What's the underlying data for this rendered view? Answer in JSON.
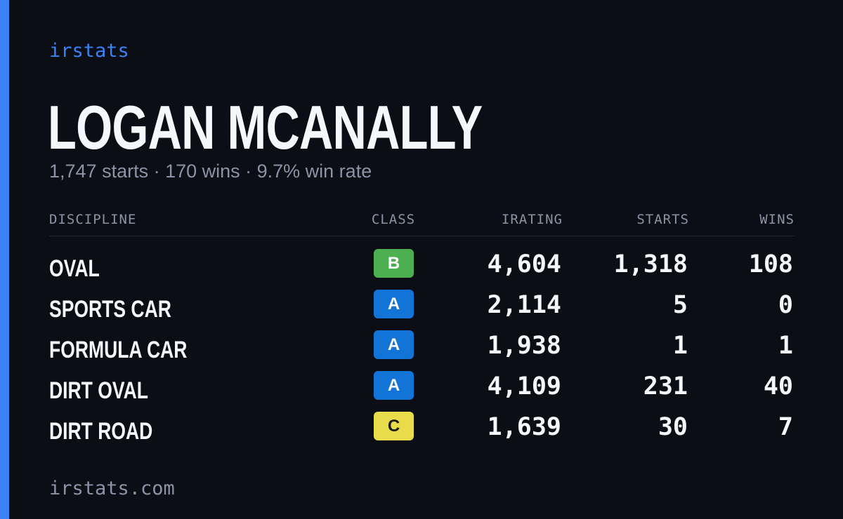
{
  "brand": "irstats",
  "player": {
    "name": "LOGAN MCANALLY",
    "summary": "1,747 starts · 170 wins · 9.7% win rate"
  },
  "table": {
    "headers": {
      "discipline": "DISCIPLINE",
      "class": "CLASS",
      "irating": "IRATING",
      "starts": "STARTS",
      "wins": "WINS"
    },
    "rows": [
      {
        "discipline": "OVAL",
        "class": "B",
        "irating": "4,604",
        "starts": "1,318",
        "wins": "108"
      },
      {
        "discipline": "SPORTS CAR",
        "class": "A",
        "irating": "2,114",
        "starts": "5",
        "wins": "0"
      },
      {
        "discipline": "FORMULA CAR",
        "class": "A",
        "irating": "1,938",
        "starts": "1",
        "wins": "1"
      },
      {
        "discipline": "DIRT OVAL",
        "class": "A",
        "irating": "4,109",
        "starts": "231",
        "wins": "40"
      },
      {
        "discipline": "DIRT ROAD",
        "class": "C",
        "irating": "1,639",
        "starts": "30",
        "wins": "7"
      }
    ]
  },
  "footer": {
    "domain": "irstats.com"
  },
  "colors": {
    "background": "#0b0e14",
    "accent": "#3b82f6",
    "class_a": "#1274d6",
    "class_b": "#4caf50",
    "class_c": "#e8dc4a",
    "muted_text": "#8b93a6"
  }
}
